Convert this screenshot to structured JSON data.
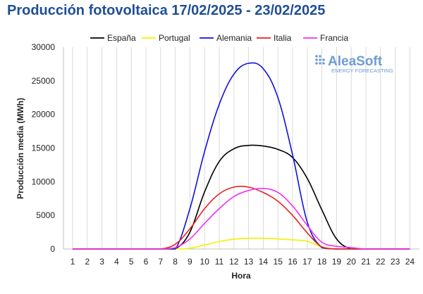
{
  "title": "Producción fotovoltaica 17/02/2025 - 23/02/2025",
  "logo": {
    "brand": "AleaSoft",
    "tagline": "ENERGY FORECASTING"
  },
  "chart_data": {
    "type": "line",
    "xlabel": "Hora",
    "ylabel": "Producción media (MWh)",
    "ylim": [
      0,
      30000
    ],
    "yticks": [
      0,
      5000,
      10000,
      15000,
      20000,
      25000,
      30000
    ],
    "ytick_labels": [
      "0",
      "5000",
      "10000",
      "15000",
      "20000",
      "25000",
      "30000"
    ],
    "x": [
      1,
      2,
      3,
      4,
      5,
      6,
      7,
      8,
      9,
      10,
      11,
      12,
      13,
      14,
      15,
      16,
      17,
      18,
      19,
      20,
      21,
      22,
      23,
      24
    ],
    "x_labels": [
      "1",
      "2",
      "3",
      "4",
      "5",
      "6",
      "7",
      "8",
      "9",
      "10",
      "11",
      "12",
      "13",
      "14",
      "15",
      "16",
      "17",
      "18",
      "19",
      "20",
      "21",
      "22",
      "23",
      "24"
    ],
    "grid": "vertical",
    "legend_position": "top",
    "series": [
      {
        "name": "España",
        "color": "#000000",
        "values": [
          0,
          0,
          0,
          0,
          0,
          0,
          0,
          0,
          2500,
          8500,
          13000,
          14900,
          15400,
          15300,
          14800,
          13600,
          10500,
          5800,
          1500,
          0,
          0,
          0,
          0,
          0
        ]
      },
      {
        "name": "Portugal",
        "color": "#f2f200",
        "values": [
          0,
          0,
          0,
          0,
          0,
          0,
          0,
          0,
          100,
          600,
          1100,
          1450,
          1600,
          1600,
          1500,
          1350,
          1150,
          300,
          0,
          0,
          0,
          0,
          0,
          0
        ]
      },
      {
        "name": "Alemania",
        "color": "#1010e0",
        "values": [
          0,
          0,
          0,
          0,
          0,
          0,
          0,
          0,
          6000,
          14500,
          21500,
          26000,
          27600,
          26800,
          22500,
          14000,
          4000,
          200,
          0,
          0,
          0,
          0,
          0,
          0
        ]
      },
      {
        "name": "Italia",
        "color": "#e82020",
        "values": [
          0,
          0,
          0,
          0,
          0,
          0,
          0,
          700,
          3000,
          6000,
          8200,
          9200,
          9200,
          8400,
          7100,
          5000,
          2400,
          300,
          0,
          0,
          0,
          0,
          0,
          0
        ]
      },
      {
        "name": "Francia",
        "color": "#f030f0",
        "values": [
          0,
          0,
          0,
          0,
          0,
          0,
          0,
          200,
          1500,
          3800,
          6000,
          7800,
          8700,
          9000,
          8400,
          6400,
          3500,
          1000,
          400,
          200,
          0,
          0,
          0,
          0
        ]
      }
    ]
  }
}
